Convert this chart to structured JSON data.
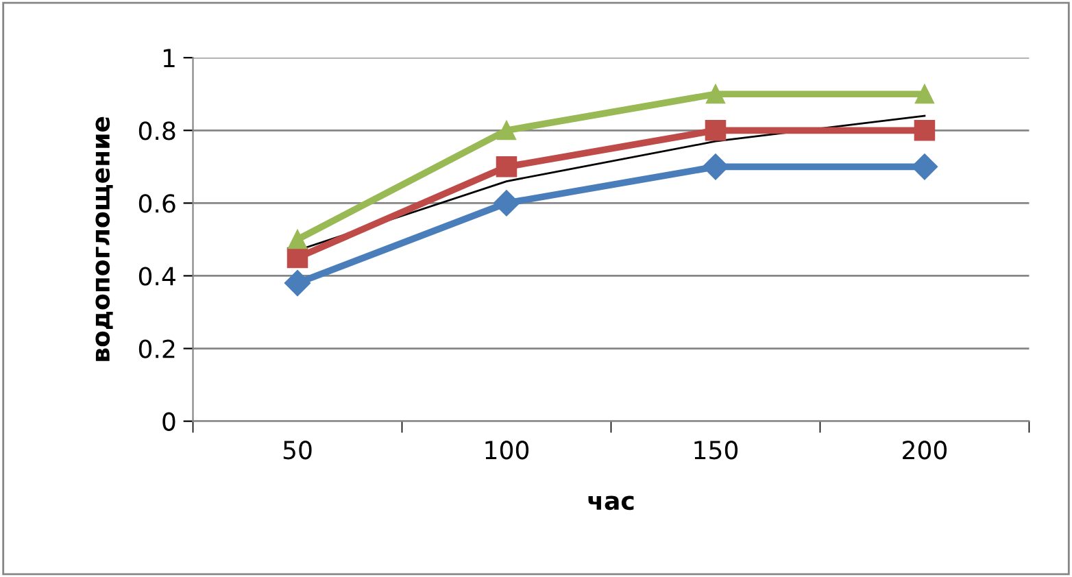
{
  "chart_data": {
    "type": "line",
    "xlabel": "час",
    "ylabel": "водопоглощение",
    "categories": [
      "50",
      "100",
      "150",
      "200"
    ],
    "series": [
      {
        "color": "#4a7ebb",
        "marker": "diamond",
        "values": [
          0.38,
          0.6,
          0.7,
          0.7
        ]
      },
      {
        "color": "#be4b48",
        "marker": "square",
        "values": [
          0.45,
          0.7,
          0.8,
          0.8
        ]
      },
      {
        "color": "#98b954",
        "marker": "triangle",
        "values": [
          0.5,
          0.8,
          0.9,
          0.9
        ]
      },
      {
        "color": "#000000",
        "marker": "none",
        "values": [
          0.47,
          0.66,
          0.77,
          0.84
        ]
      }
    ],
    "ylim": [
      0,
      1
    ],
    "yticks": [
      0,
      0.2,
      0.4,
      0.6,
      0.8,
      1
    ],
    "grid": "y",
    "legend": false
  }
}
